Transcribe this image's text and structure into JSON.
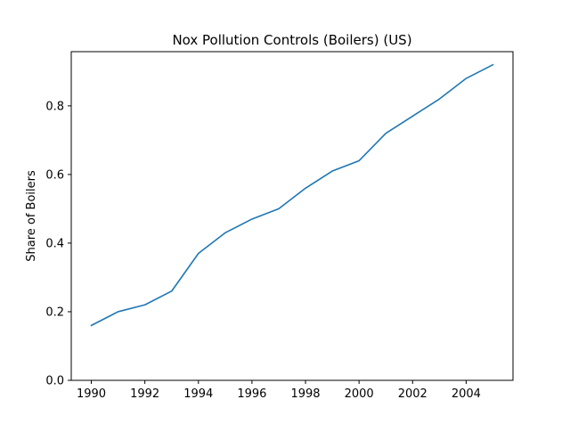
{
  "chart_data": {
    "type": "line",
    "title": "Nox Pollution Controls (Boilers) (US)",
    "xlabel": "",
    "ylabel": "Share of Boilers",
    "xlim": [
      1989.25,
      2005.75
    ],
    "ylim": [
      0,
      0.958
    ],
    "xticks": [
      1990,
      1992,
      1994,
      1996,
      1998,
      2000,
      2002,
      2004
    ],
    "yticks": [
      0.0,
      0.2,
      0.4,
      0.6,
      0.8
    ],
    "ytick_labels": [
      "0.0",
      "0.2",
      "0.4",
      "0.6",
      "0.8"
    ],
    "grid": false,
    "series": [
      {
        "color": "#1f77b4",
        "x": [
          1990,
          1991,
          1992,
          1993,
          1994,
          1995,
          1996,
          1997,
          1998,
          1999,
          2000,
          2001,
          2002,
          2003,
          2004,
          2005
        ],
        "y": [
          0.16,
          0.2,
          0.22,
          0.26,
          0.37,
          0.43,
          0.47,
          0.5,
          0.56,
          0.61,
          0.64,
          0.72,
          0.77,
          0.82,
          0.88,
          0.92
        ]
      }
    ]
  }
}
